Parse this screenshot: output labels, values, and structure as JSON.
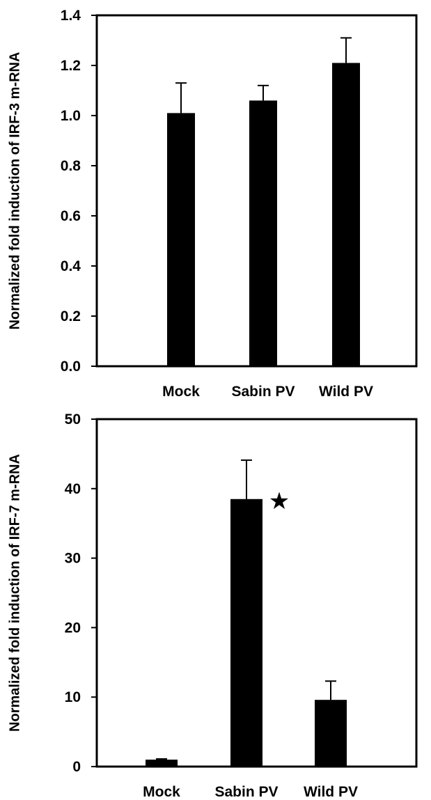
{
  "chart_data": [
    {
      "type": "bar",
      "title": "",
      "xlabel": "",
      "ylabel": "Normalized fold induction of IRF-3 m-RNA",
      "categories": [
        "Mock",
        "Sabin PV",
        "Wild PV"
      ],
      "values": [
        1.01,
        1.06,
        1.21
      ],
      "errors": [
        0.12,
        0.06,
        0.1
      ],
      "ylim": [
        0,
        1.4
      ],
      "yticks": [
        "0.0",
        "0.2",
        "0.4",
        "0.6",
        "0.8",
        "1.0",
        "1.2",
        "1.4"
      ],
      "ytick_values": [
        0,
        0.2,
        0.4,
        0.6,
        0.8,
        1.0,
        1.2,
        1.4
      ],
      "bar_color": "#000000",
      "grid": false,
      "annotations": []
    },
    {
      "type": "bar",
      "title": "",
      "xlabel": "",
      "ylabel": "Normalized fold induction of IRF-7 m-RNA",
      "categories": [
        "Mock",
        "Sabin PV",
        "Wild PV"
      ],
      "values": [
        1.0,
        38.5,
        9.6
      ],
      "errors": [
        0.1,
        5.6,
        2.7
      ],
      "ylim": [
        0,
        50
      ],
      "yticks": [
        "0",
        "10",
        "20",
        "30",
        "40",
        "50"
      ],
      "ytick_values": [
        0,
        10,
        20,
        30,
        40,
        50
      ],
      "bar_color": "#000000",
      "grid": false,
      "annotations": [
        {
          "category": "Sabin PV",
          "symbol": "★",
          "meaning": "significant"
        }
      ]
    }
  ]
}
